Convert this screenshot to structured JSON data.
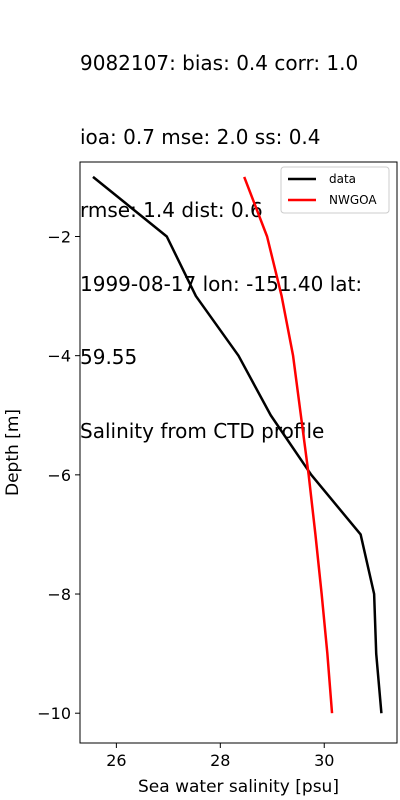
{
  "title_lines": [
    "9082107: bias: 0.4  corr: 1.0",
    " ioa: 0.7  mse: 2.0  ss: 0.4",
    "rmse: 1.4  dist: 0.6",
    "1999-08-17 lon: -151.40 lat:",
    "59.55",
    "Salinity from CTD profile"
  ],
  "chart_data": {
    "type": "line",
    "title": "9082107: bias: 0.4  corr: 1.0 ioa: 0.7  mse: 2.0  ss: 0.4 rmse: 1.4  dist: 0.6 1999-08-17 lon: -151.40 lat: 59.55 Salinity from CTD profile",
    "xlabel": "Sea water salinity [psu]",
    "ylabel": "Depth [m]",
    "xlim": [
      25.3,
      31.4
    ],
    "ylim": [
      -10.5,
      -0.75
    ],
    "xticks": [
      26,
      28,
      30
    ],
    "yticks": [
      -2,
      -4,
      -6,
      -8,
      -10
    ],
    "grid": false,
    "legend_position": "top-right",
    "series": [
      {
        "name": "data",
        "color": "#000000",
        "x": [
          25.55,
          26.97,
          27.53,
          28.35,
          28.97,
          29.75,
          30.7,
          30.96,
          31.0,
          31.1
        ],
        "y": [
          -1,
          -2,
          -3,
          -4,
          -5,
          -6,
          -7,
          -8,
          -9,
          -10
        ]
      },
      {
        "name": "NWGOA",
        "color": "#ff0000",
        "x": [
          28.46,
          28.9,
          29.18,
          29.4,
          29.55,
          29.7,
          29.83,
          29.95,
          30.06,
          30.15
        ],
        "y": [
          -1,
          -2,
          -3,
          -4,
          -5,
          -6,
          -7,
          -8,
          -9,
          -10
        ]
      }
    ]
  }
}
